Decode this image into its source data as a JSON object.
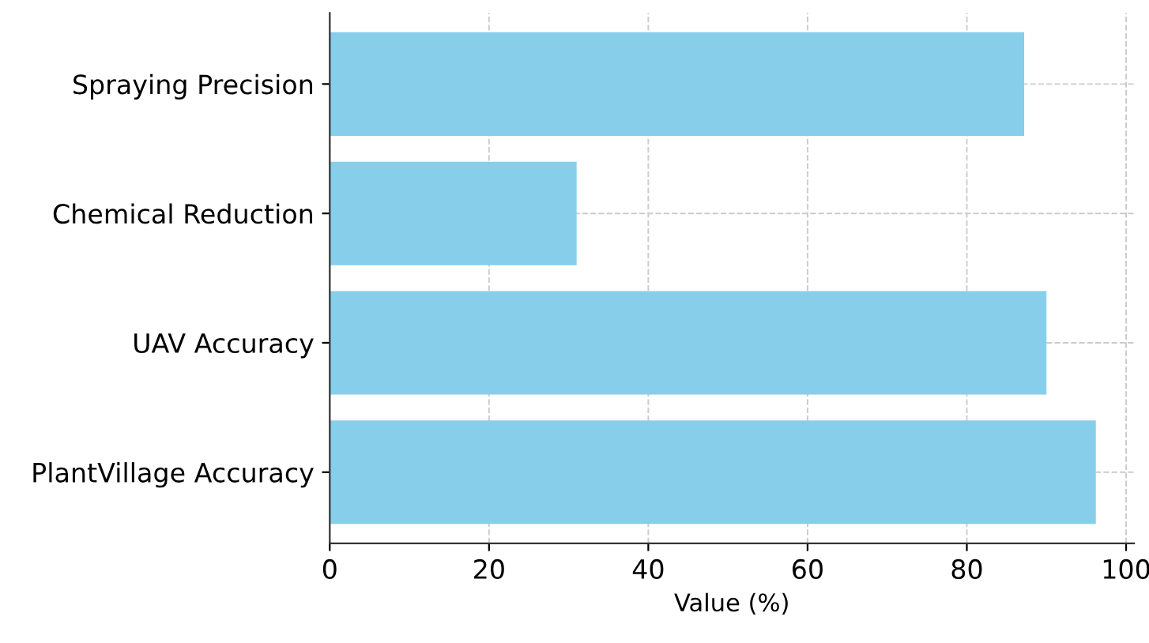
{
  "chart_data": {
    "type": "bar",
    "orientation": "horizontal",
    "xlabel": "Value (%)",
    "categories": [
      "Spraying Precision",
      "Chemical Reduction",
      "UAV Accuracy",
      "PlantVillage Accuracy"
    ],
    "values": [
      87.2,
      31,
      90,
      96.2
    ],
    "color": "#87ceeb",
    "xlim": [
      0,
      101
    ],
    "xticks": [
      0,
      20,
      40,
      60,
      80,
      100
    ],
    "grid": true
  }
}
